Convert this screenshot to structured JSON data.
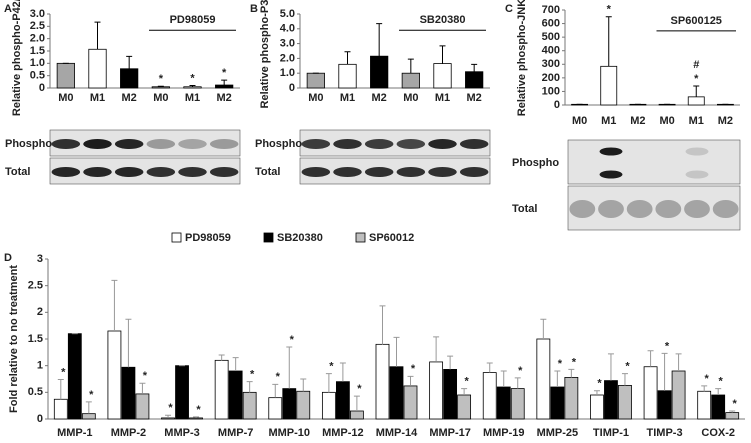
{
  "chart_data": [
    {
      "type": "bar",
      "panel": "A",
      "y_label": "Relative phospho-P42/44",
      "categories": [
        "M0",
        "M1",
        "M2",
        "M0",
        "M1",
        "M2"
      ],
      "values": [
        1.0,
        1.57,
        0.78,
        0.05,
        0.05,
        0.12
      ],
      "errors": [
        0,
        1.1,
        0.5,
        0.02,
        0.05,
        0.2
      ],
      "colors": [
        "#a6a6a6",
        "#ffffff",
        "#000000",
        "#a6a6a6",
        "#ffffff",
        "#000000"
      ],
      "annotations": [
        [],
        [],
        [],
        [
          "*"
        ],
        [
          "*"
        ],
        [
          "*"
        ]
      ],
      "group_label": "PD98059",
      "ylim": [
        0,
        3
      ],
      "yticks": [
        0,
        0.5,
        {
          "value": 1,
          "label": "1.0"
        },
        1.5,
        {
          "value": 2,
          "label": "2.0"
        },
        2.5,
        {
          "value": 3,
          "label": "3.0"
        }
      ],
      "blot_labels": [
        "Phospho",
        "Total"
      ]
    },
    {
      "type": "bar",
      "panel": "B",
      "y_label": "Relative phospho-P38",
      "categories": [
        "M0",
        "M1",
        "M2",
        "M0",
        "M1",
        "M2"
      ],
      "values": [
        1.0,
        1.6,
        2.15,
        1.0,
        1.65,
        1.1
      ],
      "errors": [
        0,
        0.85,
        2.2,
        0.95,
        1.2,
        0.5
      ],
      "colors": [
        "#a6a6a6",
        "#ffffff",
        "#000000",
        "#a6a6a6",
        "#ffffff",
        "#000000"
      ],
      "annotations": [
        [],
        [],
        [],
        [],
        [],
        []
      ],
      "group_label": "SB20380",
      "ylim": [
        0,
        5
      ],
      "yticks": [
        0,
        {
          "value": 1,
          "label": "1.0"
        },
        {
          "value": 2,
          "label": "2.0"
        },
        {
          "value": 3,
          "label": "3.0"
        },
        {
          "value": 4,
          "label": "4.0"
        },
        {
          "value": 5,
          "label": "5.0"
        }
      ],
      "blot_labels": [
        "Phospho",
        "Total"
      ]
    },
    {
      "type": "bar",
      "panel": "C",
      "y_label": "Relative phospho-JNK",
      "categories": [
        "M0",
        "M1",
        "M2",
        "M0",
        "M1",
        "M2"
      ],
      "values": [
        5,
        285,
        5,
        5,
        60,
        5
      ],
      "errors": [
        0,
        365,
        0,
        0,
        80,
        0
      ],
      "colors": [
        "#a6a6a6",
        "#ffffff",
        "#000000",
        "#a6a6a6",
        "#ffffff",
        "#000000"
      ],
      "annotations": [
        [],
        [
          "*"
        ],
        [],
        [],
        [
          "#",
          "*"
        ],
        []
      ],
      "group_label": "SP600125",
      "ylim": [
        0,
        700
      ],
      "yticks": [
        0,
        100,
        200,
        300,
        400,
        500,
        600,
        700
      ],
      "blot_labels": [
        "Phospho",
        "Total"
      ]
    },
    {
      "type": "bar",
      "panel": "D",
      "y_label": "Fold relative to no treatment",
      "categories": [
        "MMP-1",
        "MMP-2",
        "MMP-3",
        "MMP-7",
        "MMP-10",
        "MMP-12",
        "MMP-14",
        "MMP-17",
        "MMP-19",
        "MMP-25",
        "TIMP-1",
        "TIMP-3",
        "COX-2"
      ],
      "series": [
        {
          "name": "PD98059",
          "color": "#ffffff",
          "values": [
            0.37,
            1.65,
            0.02,
            1.1,
            0.4,
            0.5,
            1.4,
            1.07,
            0.87,
            1.5,
            0.45,
            0.98,
            0.52
          ],
          "errors": [
            0.37,
            0.95,
            0.05,
            0.1,
            0.25,
            0.35,
            0.72,
            0.47,
            0.18,
            0.37,
            0.08,
            0.3,
            0.1
          ],
          "annotations": [
            [
              "*"
            ],
            [],
            [
              "*"
            ],
            [],
            [
              "*"
            ],
            [
              "*"
            ],
            [],
            [],
            [],
            [],
            [
              "*"
            ],
            [],
            [
              "*"
            ]
          ]
        },
        {
          "name": "SB20380",
          "color": "#000000",
          "values": [
            1.6,
            0.97,
            1.0,
            0.9,
            0.57,
            0.7,
            0.98,
            0.93,
            0.6,
            0.6,
            0.72,
            0.53,
            0.45
          ],
          "errors": [
            0,
            0.9,
            0,
            0.25,
            0.78,
            0.35,
            0.55,
            0.25,
            0.3,
            0.3,
            0.5,
            0.7,
            0.12
          ],
          "annotations": [
            [],
            [],
            [],
            [],
            [
              "*"
            ],
            [],
            [],
            [],
            [],
            [
              "*"
            ],
            [],
            [
              "*"
            ],
            [
              "*"
            ]
          ]
        },
        {
          "name": "SP60012",
          "color": "#bfbfbf",
          "values": [
            0.1,
            0.47,
            0.02,
            0.5,
            0.52,
            0.15,
            0.62,
            0.45,
            0.57,
            0.78,
            0.63,
            0.9,
            0.12
          ],
          "errors": [
            0.22,
            0.2,
            0.02,
            0.2,
            0.23,
            0.28,
            0.18,
            0.12,
            0.2,
            0.15,
            0.22,
            0.32,
            0.03
          ],
          "annotations": [
            [
              "*"
            ],
            [
              "*"
            ],
            [
              "*"
            ],
            [
              "*"
            ],
            [],
            [
              "*"
            ],
            [
              "*"
            ],
            [
              "*"
            ],
            [
              "*"
            ],
            [
              "*"
            ],
            [
              "*"
            ],
            [],
            [
              "*"
            ]
          ]
        }
      ],
      "ylim": [
        0,
        3
      ],
      "yticks": [
        0,
        0.5,
        1,
        1.5,
        2,
        2.5,
        3
      ]
    }
  ]
}
